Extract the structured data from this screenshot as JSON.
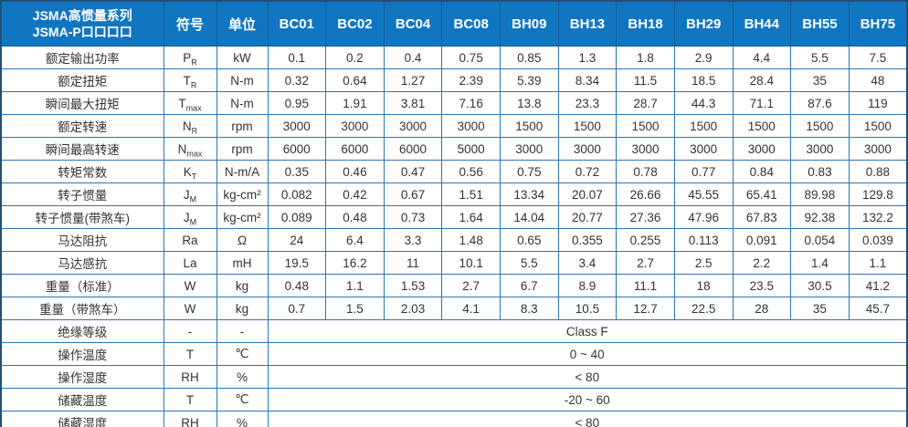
{
  "header": {
    "title_line1": "JSMA高惯量系列",
    "title_line2": "JSMA-P口口口口",
    "symbol_col": "符号",
    "unit_col": "单位",
    "models": [
      "BC01",
      "BC02",
      "BC04",
      "BC08",
      "BH09",
      "BH13",
      "BH18",
      "BH29",
      "BH44",
      "BH55",
      "BH75"
    ]
  },
  "rows": [
    {
      "label": "额定输出功率",
      "sym": "P",
      "sub": "R",
      "unit": "kW",
      "values": [
        "0.1",
        "0.2",
        "0.4",
        "0.75",
        "0.85",
        "1.3",
        "1.8",
        "2.9",
        "4.4",
        "5.5",
        "7.5"
      ]
    },
    {
      "label": "额定扭矩",
      "sym": "T",
      "sub": "R",
      "unit": "N-m",
      "values": [
        "0.32",
        "0.64",
        "1.27",
        "2.39",
        "5.39",
        "8.34",
        "11.5",
        "18.5",
        "28.4",
        "35",
        "48"
      ]
    },
    {
      "label": "瞬间最大扭矩",
      "sym": "T",
      "sub": "max",
      "unit": "N-m",
      "values": [
        "0.95",
        "1.91",
        "3.81",
        "7.16",
        "13.8",
        "23.3",
        "28.7",
        "44.3",
        "71.1",
        "87.6",
        "119"
      ]
    },
    {
      "label": "额定转速",
      "sym": "N",
      "sub": "R",
      "unit": "rpm",
      "values": [
        "3000",
        "3000",
        "3000",
        "3000",
        "1500",
        "1500",
        "1500",
        "1500",
        "1500",
        "1500",
        "1500"
      ]
    },
    {
      "label": "瞬间最高转速",
      "sym": "N",
      "sub": "max",
      "unit": "rpm",
      "values": [
        "6000",
        "6000",
        "6000",
        "5000",
        "3000",
        "3000",
        "3000",
        "3000",
        "3000",
        "3000",
        "3000"
      ]
    },
    {
      "label": "转矩常数",
      "sym": "K",
      "sub": "T",
      "unit": "N-m/A",
      "values": [
        "0.35",
        "0.46",
        "0.47",
        "0.56",
        "0.75",
        "0.72",
        "0.78",
        "0.77",
        "0.84",
        "0.83",
        "0.88"
      ]
    },
    {
      "label": "转子惯量",
      "sym": "J",
      "sub": "M",
      "unit": "kg-cm²",
      "values": [
        "0.082",
        "0.42",
        "0.67",
        "1.51",
        "13.34",
        "20.07",
        "26.66",
        "45.55",
        "65.41",
        "89.98",
        "129.8"
      ]
    },
    {
      "label": "转子惯量(带煞车)",
      "sym": "J",
      "sub": "M",
      "unit": "kg-cm²",
      "values": [
        "0.089",
        "0.48",
        "0.73",
        "1.64",
        "14.04",
        "20.77",
        "27.36",
        "47.96",
        "67.83",
        "92.38",
        "132.2"
      ]
    },
    {
      "label": "马达阻抗",
      "sym": "Ra",
      "sub": "",
      "unit": "Ω",
      "values": [
        "24",
        "6.4",
        "3.3",
        "1.48",
        "0.65",
        "0.355",
        "0.255",
        "0.113",
        "0.091",
        "0.054",
        "0.039"
      ]
    },
    {
      "label": "马达感抗",
      "sym": "La",
      "sub": "",
      "unit": "mH",
      "values": [
        "19.5",
        "16.2",
        "11",
        "10.1",
        "5.5",
        "3.4",
        "2.7",
        "2.5",
        "2.2",
        "1.4",
        "1.1"
      ]
    },
    {
      "label": "重量（标准）",
      "sym": "W",
      "sub": "",
      "unit": "kg",
      "values": [
        "0.48",
        "1.1",
        "1.53",
        "2.7",
        "6.7",
        "8.9",
        "11.1",
        "18",
        "23.5",
        "30.5",
        "41.2"
      ]
    },
    {
      "label": "重量（带煞车）",
      "sym": "W",
      "sub": "",
      "unit": "kg",
      "values": [
        "0.7",
        "1.5",
        "2.03",
        "4.1",
        "8.3",
        "10.5",
        "12.7",
        "22.5",
        "28",
        "35",
        "45.7"
      ]
    }
  ],
  "span_rows": [
    {
      "label": "绝缘等级",
      "sym": "-",
      "unit": "-",
      "value": "Class F"
    },
    {
      "label": "操作温度",
      "sym": "T",
      "unit": "℃",
      "value": "0 ~ 40"
    },
    {
      "label": "操作湿度",
      "sym": "RH",
      "unit": "%",
      "value": "< 80"
    },
    {
      "label": "储藏温度",
      "sym": "T",
      "unit": "℃",
      "value": "-20 ~ 60"
    },
    {
      "label": "储藏湿度",
      "sym": "RH",
      "unit": "%",
      "value": "< 80"
    }
  ],
  "colors": {
    "header_bg": "#1176c1",
    "header_divider": "#185a93",
    "grid_border": "#2e74b5",
    "outer_border": "#1f4e79",
    "header_text": "#ffffff",
    "body_text": "#333333"
  }
}
